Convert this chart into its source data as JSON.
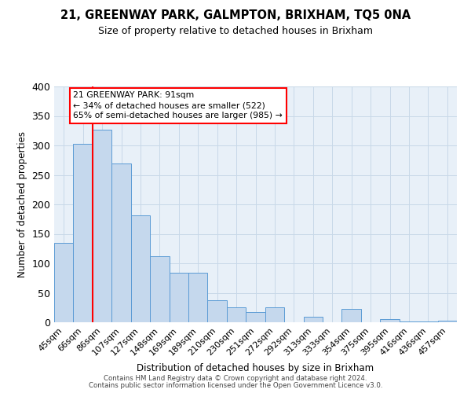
{
  "title": "21, GREENWAY PARK, GALMPTON, BRIXHAM, TQ5 0NA",
  "subtitle": "Size of property relative to detached houses in Brixham",
  "xlabel": "Distribution of detached houses by size in Brixham",
  "ylabel": "Number of detached properties",
  "bar_labels": [
    "45sqm",
    "66sqm",
    "86sqm",
    "107sqm",
    "127sqm",
    "148sqm",
    "169sqm",
    "189sqm",
    "210sqm",
    "230sqm",
    "251sqm",
    "272sqm",
    "292sqm",
    "313sqm",
    "333sqm",
    "354sqm",
    "375sqm",
    "395sqm",
    "416sqm",
    "436sqm",
    "457sqm"
  ],
  "bar_values": [
    135,
    303,
    327,
    270,
    182,
    112,
    84,
    84,
    37,
    26,
    18,
    25,
    0,
    10,
    0,
    23,
    0,
    5,
    2,
    1,
    3
  ],
  "bar_color": "#c5d8ed",
  "bar_edge_color": "#5b9bd5",
  "vline_color": "red",
  "annotation_text": "21 GREENWAY PARK: 91sqm\n← 34% of detached houses are smaller (522)\n65% of semi-detached houses are larger (985) →",
  "annotation_box_color": "white",
  "annotation_box_edge_color": "red",
  "ylim": [
    0,
    400
  ],
  "yticks": [
    0,
    50,
    100,
    150,
    200,
    250,
    300,
    350,
    400
  ],
  "grid_color": "#c8d8e8",
  "background_color": "#e8f0f8",
  "footer1": "Contains HM Land Registry data © Crown copyright and database right 2024.",
  "footer2": "Contains public sector information licensed under the Open Government Licence v3.0."
}
